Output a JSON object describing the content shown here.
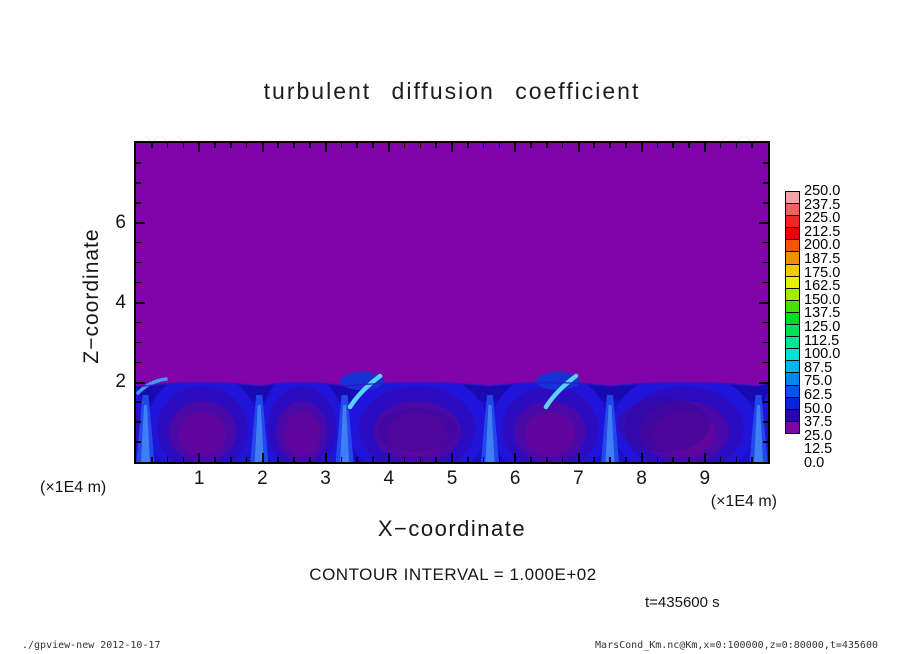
{
  "header": {
    "title": "turbulent diffusion coefficient"
  },
  "chart_data": {
    "type": "filled-contour",
    "title": "turbulent diffusion coefficient",
    "xlabel": "X−coordinate",
    "x_units": "(×1E4 m)",
    "xlim": [
      0,
      10
    ],
    "x_major_ticks": [
      "1",
      "2",
      "3",
      "4",
      "5",
      "6",
      "7",
      "8",
      "9"
    ],
    "x_minor_step": 0.25,
    "ylabel": "Z−coordinate",
    "y_units": "(×1E4 m)",
    "ylim": [
      0,
      8
    ],
    "y_major_ticks": [
      "2",
      "4",
      "6"
    ],
    "y_minor_step": 0.5,
    "contour_interval_label": "CONTOUR INTERVAL = 1.000E+02",
    "time_label": "t=435600 s",
    "colorbar": {
      "min": 0.0,
      "max": 250.0,
      "step": 12.5,
      "boundary_labels_top_to_bottom": [
        "250.0",
        "237.5",
        "225.0",
        "212.5",
        "200.0",
        "187.5",
        "175.0",
        "162.5",
        "150.0",
        "137.5",
        "125.0",
        "112.5",
        "100.0",
        "87.5",
        "75.0",
        "62.5",
        "50.0",
        "37.5",
        "25.0",
        "12.5",
        "0.0"
      ],
      "cell_colors_top_to_bottom": [
        "#F2A4A4",
        "#F26060",
        "#F22424",
        "#F20000",
        "#F25400",
        "#F29000",
        "#F2CA00",
        "#E6F200",
        "#9EEE00",
        "#40E400",
        "#00DE20",
        "#00E25C",
        "#00E696",
        "#00E2D4",
        "#00B6EE",
        "#0086EE",
        "#0054EE",
        "#0A24DC",
        "#2A06B0",
        "#7F03A8"
      ]
    },
    "field": {
      "description": "Km is in the lowest bin (0–12.5, purple) everywhere above z≈2×1E4 m. Below z≈2 a turbulent boundary layer shows convection cells: bright blue plumes (≈37.5–75) at cell edges, dark blue arcs, purple low-Km cores, and cyan maxima (≈75–100) near cell tops around x≈3.4 and x≈6.5.",
      "band_top_z": 2.0,
      "cell_boundaries_x": [
        0.15,
        1.95,
        3.3,
        5.6,
        7.5,
        9.85
      ],
      "cyan_streaks_x": [
        3.45,
        6.55
      ],
      "background_value_range": [
        0,
        12.5
      ],
      "band_value_range": [
        12.5,
        100
      ]
    }
  },
  "colors": {
    "field_background": "#7F03A8",
    "band_base": "#1A0ECC",
    "band_lid": "#17069C",
    "cell_ring_outer": "#2114DA",
    "cell_ring_mid": "#2B0CC0",
    "cell_core_outer": "#4A08A8",
    "cell_core_inner": "#5F059E",
    "plume_outer": "#2352F0",
    "plume_inner": "#4488F6",
    "cyan_streak": "#5CD2F6",
    "notch_blue": "#1730D4",
    "speckle_purple": "#3C089A",
    "frame": "#000000"
  },
  "footer": {
    "left": "./gpview-new  2012-10-17",
    "right": "MarsCond_Km.nc@Km,x=0:100000,z=0:80000,t=435600"
  }
}
